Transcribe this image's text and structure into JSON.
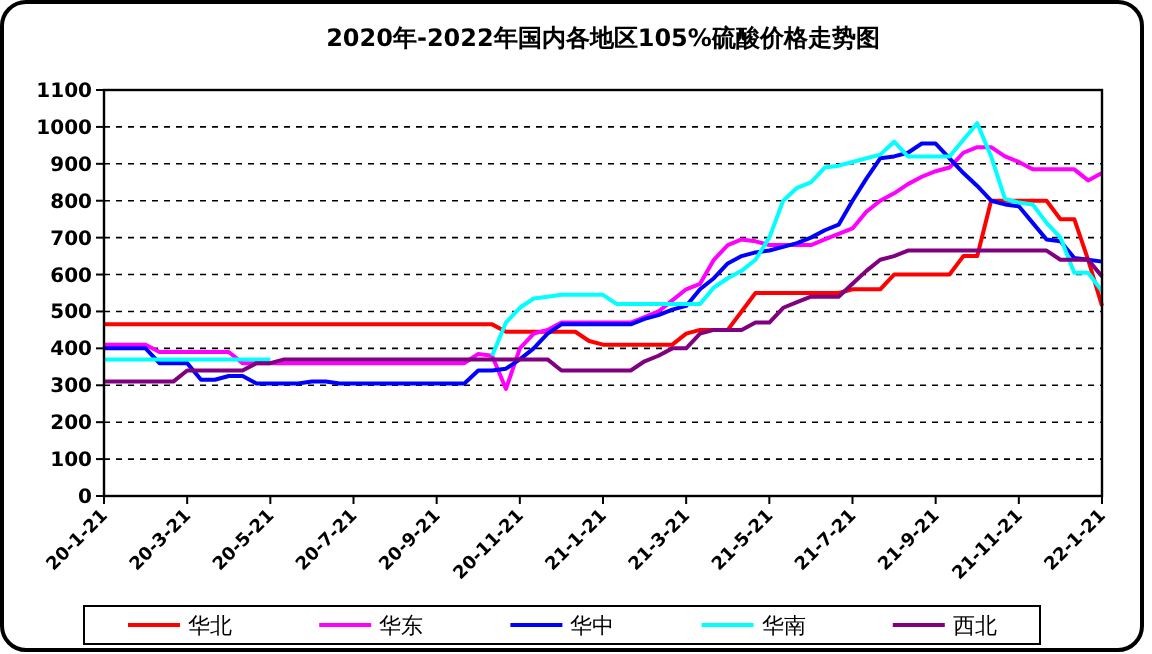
{
  "chart_data": {
    "type": "line",
    "title": "2020年-2022年国内各地区105%硫酸价格走势图",
    "categories": [
      "20-1-21",
      null,
      null,
      null,
      null,
      null,
      "20-3-21",
      null,
      null,
      null,
      null,
      null,
      "20-5-21",
      null,
      null,
      null,
      null,
      null,
      "20-7-21",
      null,
      null,
      null,
      null,
      null,
      "20-9-21",
      null,
      null,
      null,
      null,
      null,
      "20-11-21",
      null,
      null,
      null,
      null,
      null,
      "21-1-21",
      null,
      null,
      null,
      null,
      null,
      "21-3-21",
      null,
      null,
      null,
      null,
      null,
      "21-5-21",
      null,
      null,
      null,
      null,
      null,
      "21-7-21",
      null,
      null,
      null,
      null,
      null,
      "21-9-21",
      null,
      null,
      null,
      null,
      null,
      "21-11-21",
      null,
      null,
      null,
      null,
      null,
      "22-1-21"
    ],
    "series": [
      {
        "name": "华北",
        "color": "#ff0000",
        "values": [
          465,
          465,
          465,
          465,
          465,
          465,
          465,
          465,
          465,
          465,
          465,
          465,
          465,
          465,
          465,
          465,
          465,
          465,
          465,
          465,
          465,
          465,
          465,
          465,
          465,
          465,
          465,
          465,
          465,
          445,
          445,
          445,
          445,
          445,
          445,
          420,
          410,
          410,
          410,
          410,
          410,
          410,
          440,
          450,
          450,
          450,
          500,
          550,
          550,
          550,
          550,
          550,
          550,
          550,
          560,
          560,
          560,
          600,
          600,
          600,
          600,
          600,
          650,
          650,
          800,
          800,
          800,
          800,
          800,
          750,
          750,
          640,
          515
        ]
      },
      {
        "name": "华东",
        "color": "#ff00ff",
        "values": [
          410,
          410,
          410,
          410,
          390,
          390,
          390,
          390,
          390,
          390,
          360,
          360,
          360,
          360,
          360,
          360,
          360,
          360,
          360,
          360,
          360,
          360,
          360,
          360,
          360,
          360,
          360,
          385,
          380,
          290,
          400,
          440,
          450,
          470,
          470,
          470,
          470,
          470,
          470,
          485,
          500,
          530,
          560,
          575,
          640,
          680,
          695,
          690,
          680,
          680,
          680,
          680,
          695,
          710,
          725,
          770,
          800,
          820,
          845,
          865,
          880,
          890,
          930,
          945,
          945,
          920,
          905,
          885,
          885,
          885,
          885,
          855,
          875
        ]
      },
      {
        "name": "华中",
        "color": "#0000ff",
        "values": [
          400,
          400,
          400,
          400,
          360,
          360,
          360,
          315,
          315,
          325,
          325,
          305,
          305,
          305,
          305,
          310,
          310,
          305,
          305,
          305,
          305,
          305,
          305,
          305,
          305,
          305,
          305,
          340,
          340,
          345,
          370,
          400,
          440,
          465,
          465,
          465,
          465,
          465,
          465,
          480,
          490,
          505,
          515,
          560,
          590,
          630,
          650,
          660,
          665,
          675,
          685,
          700,
          720,
          735,
          800,
          860,
          915,
          920,
          930,
          955,
          955,
          915,
          875,
          840,
          800,
          790,
          785,
          740,
          695,
          690,
          645,
          640,
          635
        ]
      },
      {
        "name": "华南",
        "color": "#00ffff",
        "values": [
          370,
          370,
          370,
          370,
          370,
          370,
          370,
          370,
          370,
          370,
          370,
          370,
          370,
          null,
          null,
          null,
          null,
          null,
          null,
          null,
          null,
          null,
          null,
          null,
          null,
          null,
          null,
          null,
          380,
          470,
          510,
          535,
          540,
          545,
          545,
          545,
          545,
          520,
          520,
          520,
          520,
          520,
          520,
          520,
          565,
          590,
          610,
          640,
          700,
          800,
          835,
          850,
          890,
          895,
          905,
          915,
          925,
          960,
          920,
          920,
          920,
          920,
          965,
          1010,
          920,
          805,
          795,
          790,
          740,
          700,
          605,
          605,
          555
        ]
      },
      {
        "name": "西北",
        "color": "#800080",
        "values": [
          310,
          310,
          310,
          310,
          310,
          310,
          340,
          340,
          340,
          340,
          340,
          360,
          360,
          370,
          370,
          370,
          370,
          370,
          370,
          370,
          370,
          370,
          370,
          370,
          370,
          370,
          370,
          370,
          370,
          370,
          370,
          370,
          370,
          340,
          340,
          340,
          340,
          340,
          340,
          365,
          380,
          400,
          400,
          440,
          450,
          450,
          450,
          470,
          470,
          510,
          525,
          540,
          540,
          540,
          575,
          610,
          640,
          650,
          665,
          665,
          665,
          665,
          665,
          665,
          665,
          665,
          665,
          665,
          665,
          640,
          640,
          640,
          595
        ]
      }
    ],
    "ylim": [
      0,
      1100
    ],
    "yticks": [
      0,
      100,
      200,
      300,
      400,
      500,
      600,
      700,
      800,
      900,
      1000,
      1100
    ],
    "grid": "y",
    "legend": "bottom",
    "line_style": "solid",
    "marker": "none"
  }
}
